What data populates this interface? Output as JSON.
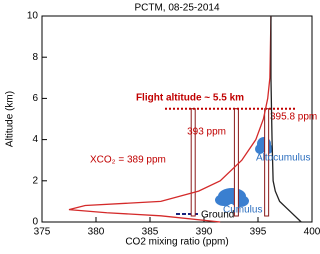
{
  "chart_data": {
    "type": "line",
    "title": "PCTM, 08-25-2014",
    "x_label": "CO2 mixing ratio (ppm)",
    "y_label": "Altitude (km)",
    "xlim": [
      375,
      400
    ],
    "xticks": [
      375,
      380,
      385,
      390,
      395,
      400
    ],
    "ylim": [
      0,
      10
    ],
    "yticks": [
      0,
      2,
      4,
      6,
      8,
      10
    ],
    "series": [
      {
        "color": "#d42a2a",
        "x": [
          391.5,
          386,
          381,
          377.5,
          379,
          386,
          389.5,
          391.5,
          393.5,
          394.8,
          395.5,
          395.9,
          396.1,
          396.2
        ],
        "values": [
          0,
          0.3,
          0.45,
          0.6,
          0.8,
          1.0,
          1.5,
          2,
          3,
          4,
          5,
          6,
          7,
          10
        ]
      },
      {
        "color": "#222222",
        "x": [
          399,
          398,
          397,
          396.6,
          396.4,
          396.3,
          396.2,
          396.2
        ],
        "values": [
          0,
          0.5,
          1,
          1.5,
          2,
          4,
          7,
          10
        ]
      }
    ],
    "flight_altitude": {
      "label": "Flight altitude ~ 5.5 km",
      "value": 5.5
    },
    "columns": [
      {
        "label": "XCO₂ = 389 ppm",
        "value": 389
      },
      {
        "label": "393 ppm",
        "value": 393
      },
      {
        "label": "395.8 ppm",
        "value": 395.8
      }
    ],
    "annotations": [
      "Cumulus",
      "Altocumulus",
      "Ground"
    ]
  }
}
